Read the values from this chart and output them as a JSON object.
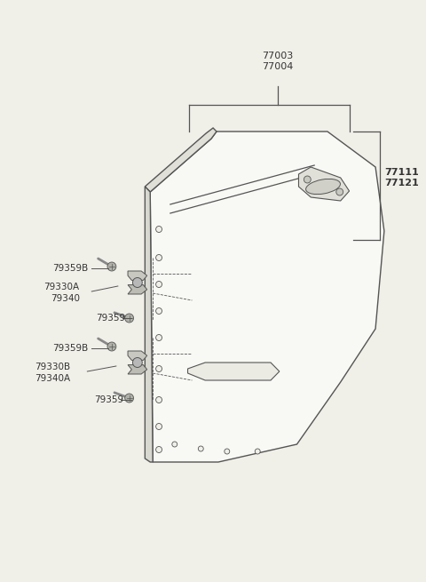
{
  "bg_color": "#f0efe8",
  "line_color": "#555555",
  "text_color": "#333333",
  "door_fill": "#f0efe8",
  "door_edge": "#555555",
  "hinge_fill": "#aaaaaa",
  "hinge_edge": "#555555",
  "labels": {
    "77003_77004": "77003\n77004",
    "77111_77121": "77111\n77121",
    "79359B_top": "79359B",
    "79330A_79340": "79330A\n79340",
    "79359_top": "79359",
    "79359B_bot": "79359B",
    "79330B_79340A": "79330B\n79340A",
    "79359_bot": "79359"
  }
}
